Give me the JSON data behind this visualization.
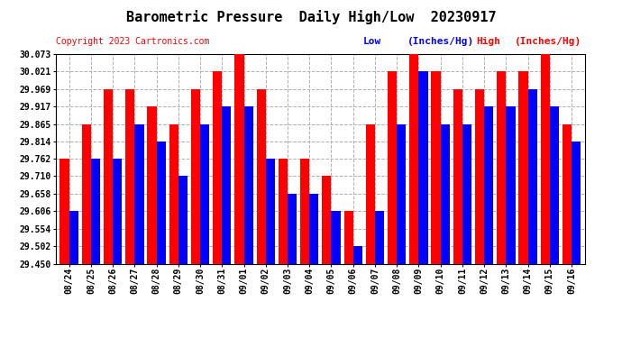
{
  "title": "Barometric Pressure  Daily High/Low  20230917",
  "copyright": "Copyright 2023 Cartronics.com",
  "legend_low": "Low",
  "legend_high": "High",
  "legend_units": "(Inches/Hg)",
  "dates": [
    "08/24",
    "08/25",
    "08/26",
    "08/27",
    "08/28",
    "08/29",
    "08/30",
    "08/31",
    "09/01",
    "09/02",
    "09/03",
    "09/04",
    "09/05",
    "09/06",
    "09/07",
    "09/08",
    "09/09",
    "09/10",
    "09/11",
    "09/12",
    "09/13",
    "09/14",
    "09/15",
    "09/16"
  ],
  "high_values": [
    29.762,
    29.865,
    29.969,
    29.969,
    29.917,
    29.865,
    29.969,
    30.021,
    30.073,
    29.969,
    29.762,
    29.762,
    29.71,
    29.606,
    29.865,
    30.021,
    30.073,
    30.021,
    29.969,
    29.969,
    30.021,
    30.021,
    30.073,
    29.865
  ],
  "low_values": [
    29.606,
    29.762,
    29.762,
    29.865,
    29.814,
    29.71,
    29.865,
    29.917,
    29.917,
    29.762,
    29.658,
    29.658,
    29.606,
    29.502,
    29.606,
    29.865,
    30.021,
    29.865,
    29.865,
    29.917,
    29.917,
    29.969,
    29.917,
    29.814
  ],
  "ylim_min": 29.45,
  "ylim_max": 30.073,
  "yticks": [
    29.45,
    29.502,
    29.554,
    29.606,
    29.658,
    29.71,
    29.762,
    29.814,
    29.865,
    29.917,
    29.969,
    30.021,
    30.073
  ],
  "bar_width": 0.42,
  "color_high": "#ff0000",
  "color_low": "#0000ff",
  "bg_color": "#ffffff",
  "grid_color": "#b0b0b0",
  "title_color": "#000000",
  "title_fontsize": 11,
  "copyright_color": "#ff0000",
  "copyright_fontsize": 7,
  "legend_fontsize": 8,
  "tick_fontsize": 7,
  "ytick_fontsize": 7
}
